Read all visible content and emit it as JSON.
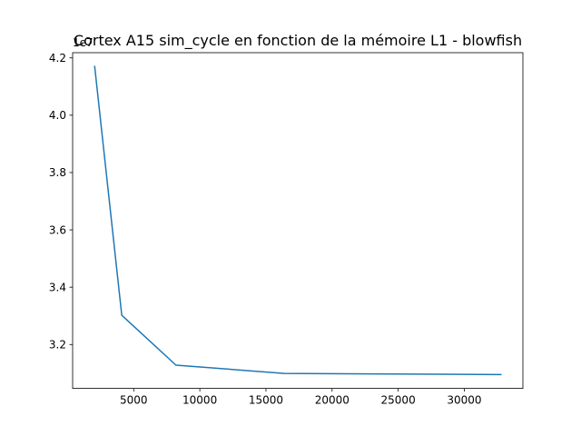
{
  "chart_data": {
    "type": "line",
    "title": "Cortex A15 sim_cycle en fonction de la mémoire L1 - blowfish",
    "xlabel": "",
    "ylabel": "",
    "y_offset_label": "1e7",
    "x": [
      2048,
      4096,
      8192,
      16384,
      32768
    ],
    "series": [
      {
        "values": [
          41700000,
          33020000,
          31280000,
          30990000,
          30950000
        ]
      }
    ],
    "xlim": [
      380,
      34430
    ],
    "ylim": [
      30468500,
      42181500
    ],
    "x_ticks": [
      5000,
      10000,
      15000,
      20000,
      25000,
      30000
    ],
    "x_tick_labels": [
      "5000",
      "10000",
      "15000",
      "20000",
      "25000",
      "30000"
    ],
    "y_ticks": [
      32000000,
      34000000,
      36000000,
      38000000,
      40000000,
      42000000
    ],
    "y_tick_labels": [
      "3.2",
      "3.4",
      "3.6",
      "3.8",
      "4.0",
      "4.2"
    ],
    "grid": false,
    "colors": {
      "line": "#1f77b4",
      "axes": "#000000",
      "background": "#ffffff"
    }
  }
}
